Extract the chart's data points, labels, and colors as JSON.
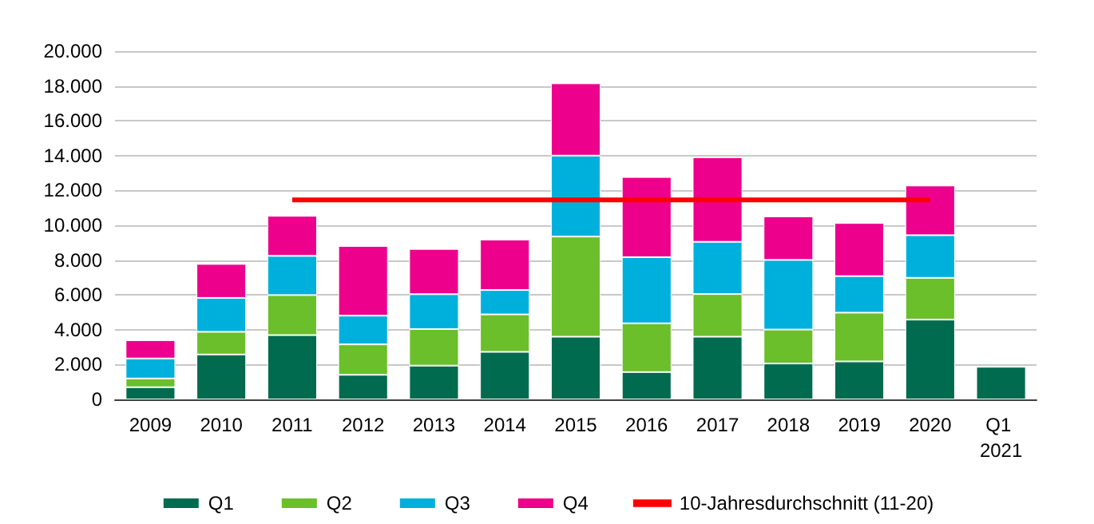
{
  "chart_data": {
    "type": "bar",
    "stacked": true,
    "categories": [
      "2009",
      "2010",
      "2011",
      "2012",
      "2013",
      "2014",
      "2015",
      "2016",
      "2017",
      "2018",
      "2019",
      "2020",
      "Q1 2021"
    ],
    "series": [
      {
        "name": "Q1",
        "color": "#006b4e",
        "values": [
          700,
          2580,
          3690,
          1410,
          1940,
          2730,
          3600,
          1570,
          3600,
          2060,
          2180,
          4580,
          1870
        ]
      },
      {
        "name": "Q2",
        "color": "#6abf2a",
        "values": [
          500,
          1300,
          2300,
          1750,
          2100,
          2150,
          5750,
          2800,
          2450,
          1950,
          2800,
          2400,
          null
        ]
      },
      {
        "name": "Q3",
        "color": "#00b0dc",
        "values": [
          1150,
          1950,
          2250,
          1650,
          2000,
          1400,
          4650,
          3800,
          3000,
          4000,
          2100,
          2450,
          null
        ]
      },
      {
        "name": "Q4",
        "color": "#ec008c",
        "values": [
          1050,
          1950,
          2300,
          4000,
          2600,
          2900,
          4150,
          4600,
          4850,
          2500,
          3050,
          2850,
          null
        ]
      },
      {
        "name": "10-Jahresdurchschnitt (11-20)",
        "type": "line",
        "color": "#ff0000",
        "marker": "none",
        "line_style": "solid",
        "values": [
          null,
          null,
          11460,
          11460,
          11460,
          11460,
          11460,
          11460,
          11460,
          11460,
          11460,
          11460,
          null
        ]
      }
    ],
    "ylim": [
      0,
      20000
    ],
    "yticks": [
      {
        "value": 0,
        "label": "0"
      },
      {
        "value": 2000,
        "label": "2.000"
      },
      {
        "value": 4000,
        "label": "4.000"
      },
      {
        "value": 6000,
        "label": "6.000"
      },
      {
        "value": 8000,
        "label": "8.000"
      },
      {
        "value": 10000,
        "label": "10.000"
      },
      {
        "value": 12000,
        "label": "12.000"
      },
      {
        "value": 14000,
        "label": "14.000"
      },
      {
        "value": 16000,
        "label": "16.000"
      },
      {
        "value": 18000,
        "label": "18.000"
      },
      {
        "value": 20000,
        "label": "20.000"
      }
    ],
    "grid": "y",
    "legend": "bottom"
  }
}
